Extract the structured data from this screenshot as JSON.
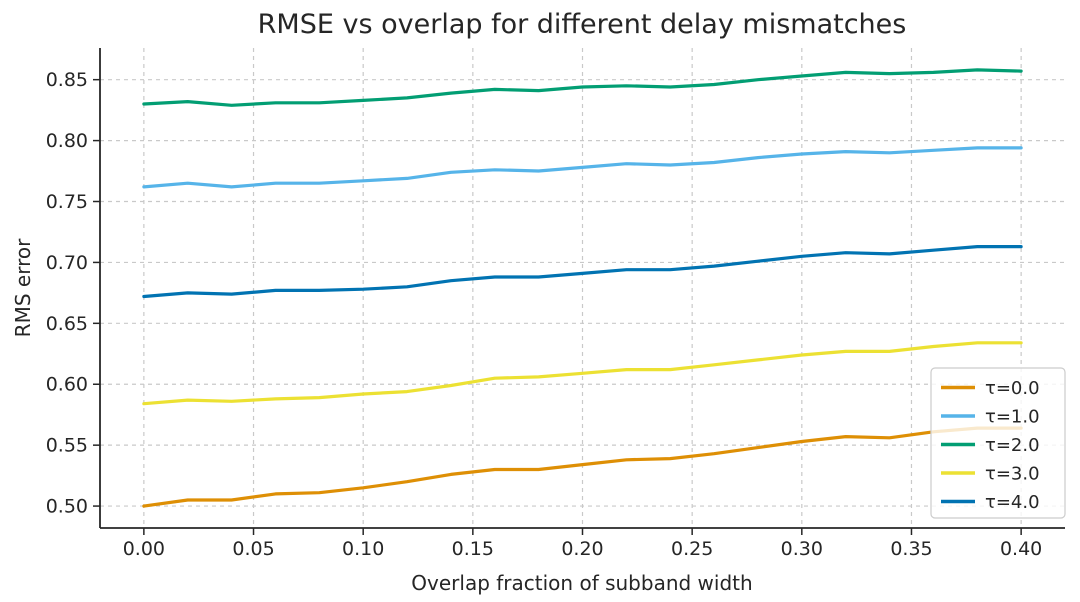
{
  "chart_data": {
    "type": "line",
    "title": "RMSE vs overlap for different delay mismatches",
    "xlabel": "Overlap fraction of subband width",
    "ylabel": "RMS error",
    "x": [
      0.0,
      0.02,
      0.04,
      0.06,
      0.08,
      0.1,
      0.12,
      0.14,
      0.16,
      0.18,
      0.2,
      0.22,
      0.24,
      0.26,
      0.28,
      0.3,
      0.32,
      0.34,
      0.36,
      0.38,
      0.4
    ],
    "series": [
      {
        "name": "τ=0.0",
        "color": "#DE8F05",
        "values": [
          0.5,
          0.505,
          0.505,
          0.51,
          0.511,
          0.515,
          0.52,
          0.526,
          0.53,
          0.53,
          0.534,
          0.538,
          0.539,
          0.543,
          0.548,
          0.553,
          0.557,
          0.556,
          0.561,
          0.564,
          0.564
        ]
      },
      {
        "name": "τ=1.0",
        "color": "#56B4E9",
        "values": [
          0.762,
          0.765,
          0.762,
          0.765,
          0.765,
          0.767,
          0.769,
          0.774,
          0.776,
          0.775,
          0.778,
          0.781,
          0.78,
          0.782,
          0.786,
          0.789,
          0.791,
          0.79,
          0.792,
          0.794,
          0.794
        ]
      },
      {
        "name": "τ=2.0",
        "color": "#029E73",
        "values": [
          0.83,
          0.832,
          0.829,
          0.831,
          0.831,
          0.833,
          0.835,
          0.839,
          0.842,
          0.841,
          0.844,
          0.845,
          0.844,
          0.846,
          0.85,
          0.853,
          0.856,
          0.855,
          0.856,
          0.858,
          0.857
        ]
      },
      {
        "name": "τ=3.0",
        "color": "#ECE133",
        "values": [
          0.584,
          0.587,
          0.586,
          0.588,
          0.589,
          0.592,
          0.594,
          0.599,
          0.605,
          0.606,
          0.609,
          0.612,
          0.612,
          0.616,
          0.62,
          0.624,
          0.627,
          0.627,
          0.631,
          0.634,
          0.634
        ]
      },
      {
        "name": "τ=4.0",
        "color": "#0173B2",
        "values": [
          0.672,
          0.675,
          0.674,
          0.677,
          0.677,
          0.678,
          0.68,
          0.685,
          0.688,
          0.688,
          0.691,
          0.694,
          0.694,
          0.697,
          0.701,
          0.705,
          0.708,
          0.707,
          0.71,
          0.713,
          0.713
        ]
      }
    ],
    "xticks": [
      0.0,
      0.05,
      0.1,
      0.15,
      0.2,
      0.25,
      0.3,
      0.35,
      0.4
    ],
    "yticks": [
      0.5,
      0.55,
      0.6,
      0.65,
      0.7,
      0.75,
      0.8,
      0.85
    ],
    "xlim": [
      -0.02,
      0.42
    ],
    "ylim": [
      0.482,
      0.876
    ],
    "grid": true,
    "grid_style": "dashed",
    "legend_position": "lower right",
    "tick_format": "0.00"
  },
  "styles": {
    "text_color": "#262626",
    "grid_color": "#c9c9c9",
    "spine_color": "#262626",
    "legend_border_color": "#cccccc",
    "legend_background": "rgba(255,255,255,0.8)",
    "background": "#ffffff"
  }
}
